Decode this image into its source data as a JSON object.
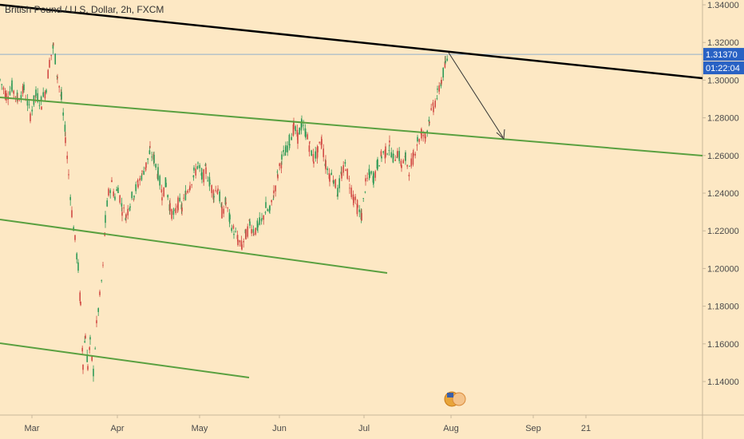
{
  "chart_data": {
    "type": "candlestick",
    "title": "British Pound / U.S. Dollar, 2h, FXCM",
    "ylim": [
      1.13,
      1.345
    ],
    "y_ticks": [
      "1.14000",
      "1.16000",
      "1.18000",
      "1.20000",
      "1.22000",
      "1.24000",
      "1.26000",
      "1.28000",
      "1.30000",
      "1.32000",
      "1.34000"
    ],
    "x_ticks": [
      "Mar",
      "Apr",
      "May",
      "Jun",
      "Jul",
      "Aug",
      "Sep",
      "21"
    ],
    "price_path": [
      [
        0,
        1.3
      ],
      [
        8,
        1.292
      ],
      [
        15,
        1.296
      ],
      [
        22,
        1.29
      ],
      [
        30,
        1.295
      ],
      [
        38,
        1.282
      ],
      [
        45,
        1.292
      ],
      [
        52,
        1.288
      ],
      [
        58,
        1.296
      ],
      [
        62,
        1.31
      ],
      [
        67,
        1.318
      ],
      [
        72,
        1.302
      ],
      [
        77,
        1.29
      ],
      [
        82,
        1.27
      ],
      [
        86,
        1.25
      ],
      [
        90,
        1.23
      ],
      [
        94,
        1.215
      ],
      [
        98,
        1.2
      ],
      [
        101,
        1.18
      ],
      [
        104,
        1.15
      ],
      [
        107,
        1.165
      ],
      [
        110,
        1.148
      ],
      [
        113,
        1.16
      ],
      [
        117,
        1.145
      ],
      [
        121,
        1.17
      ],
      [
        125,
        1.185
      ],
      [
        129,
        1.2
      ],
      [
        132,
        1.225
      ],
      [
        136,
        1.24
      ],
      [
        140,
        1.245
      ],
      [
        144,
        1.238
      ],
      [
        148,
        1.243
      ],
      [
        153,
        1.232
      ],
      [
        158,
        1.228
      ],
      [
        163,
        1.235
      ],
      [
        168,
        1.24
      ],
      [
        173,
        1.245
      ],
      [
        178,
        1.25
      ],
      [
        183,
        1.255
      ],
      [
        188,
        1.262
      ],
      [
        193,
        1.258
      ],
      [
        198,
        1.25
      ],
      [
        203,
        1.24
      ],
      [
        208,
        1.245
      ],
      [
        213,
        1.232
      ],
      [
        218,
        1.228
      ],
      [
        223,
        1.235
      ],
      [
        228,
        1.232
      ],
      [
        233,
        1.24
      ],
      [
        238,
        1.245
      ],
      [
        243,
        1.25
      ],
      [
        248,
        1.255
      ],
      [
        253,
        1.248
      ],
      [
        258,
        1.252
      ],
      [
        263,
        1.245
      ],
      [
        268,
        1.24
      ],
      [
        273,
        1.243
      ],
      [
        278,
        1.23
      ],
      [
        283,
        1.235
      ],
      [
        288,
        1.225
      ],
      [
        293,
        1.22
      ],
      [
        298,
        1.215
      ],
      [
        303,
        1.212
      ],
      [
        308,
        1.218
      ],
      [
        313,
        1.224
      ],
      [
        318,
        1.22
      ],
      [
        323,
        1.222
      ],
      [
        328,
        1.225
      ],
      [
        333,
        1.232
      ],
      [
        338,
        1.23
      ],
      [
        343,
        1.24
      ],
      [
        348,
        1.25
      ],
      [
        353,
        1.258
      ],
      [
        358,
        1.262
      ],
      [
        363,
        1.268
      ],
      [
        368,
        1.275
      ],
      [
        373,
        1.27
      ],
      [
        378,
        1.276
      ],
      [
        383,
        1.272
      ],
      [
        388,
        1.265
      ],
      [
        393,
        1.258
      ],
      [
        398,
        1.262
      ],
      [
        403,
        1.268
      ],
      [
        408,
        1.255
      ],
      [
        413,
        1.25
      ],
      [
        418,
        1.248
      ],
      [
        423,
        1.24
      ],
      [
        428,
        1.25
      ],
      [
        433,
        1.255
      ],
      [
        438,
        1.245
      ],
      [
        443,
        1.238
      ],
      [
        448,
        1.232
      ],
      [
        453,
        1.228
      ],
      [
        458,
        1.245
      ],
      [
        463,
        1.25
      ],
      [
        468,
        1.248
      ],
      [
        473,
        1.255
      ],
      [
        478,
        1.26
      ],
      [
        483,
        1.262
      ],
      [
        488,
        1.265
      ],
      [
        493,
        1.258
      ],
      [
        498,
        1.262
      ],
      [
        503,
        1.255
      ],
      [
        508,
        1.258
      ],
      [
        513,
        1.252
      ],
      [
        518,
        1.26
      ],
      [
        523,
        1.268
      ],
      [
        528,
        1.272
      ],
      [
        533,
        1.27
      ],
      [
        538,
        1.28
      ],
      [
        543,
        1.286
      ],
      [
        548,
        1.292
      ],
      [
        553,
        1.3
      ],
      [
        558,
        1.308
      ],
      [
        562,
        1.3137
      ]
    ],
    "current_price": "1.31370",
    "countdown": "01:22:04",
    "trendline_color": "#000000",
    "channel_color": "#5aa040",
    "arrow_color": "#333333"
  }
}
